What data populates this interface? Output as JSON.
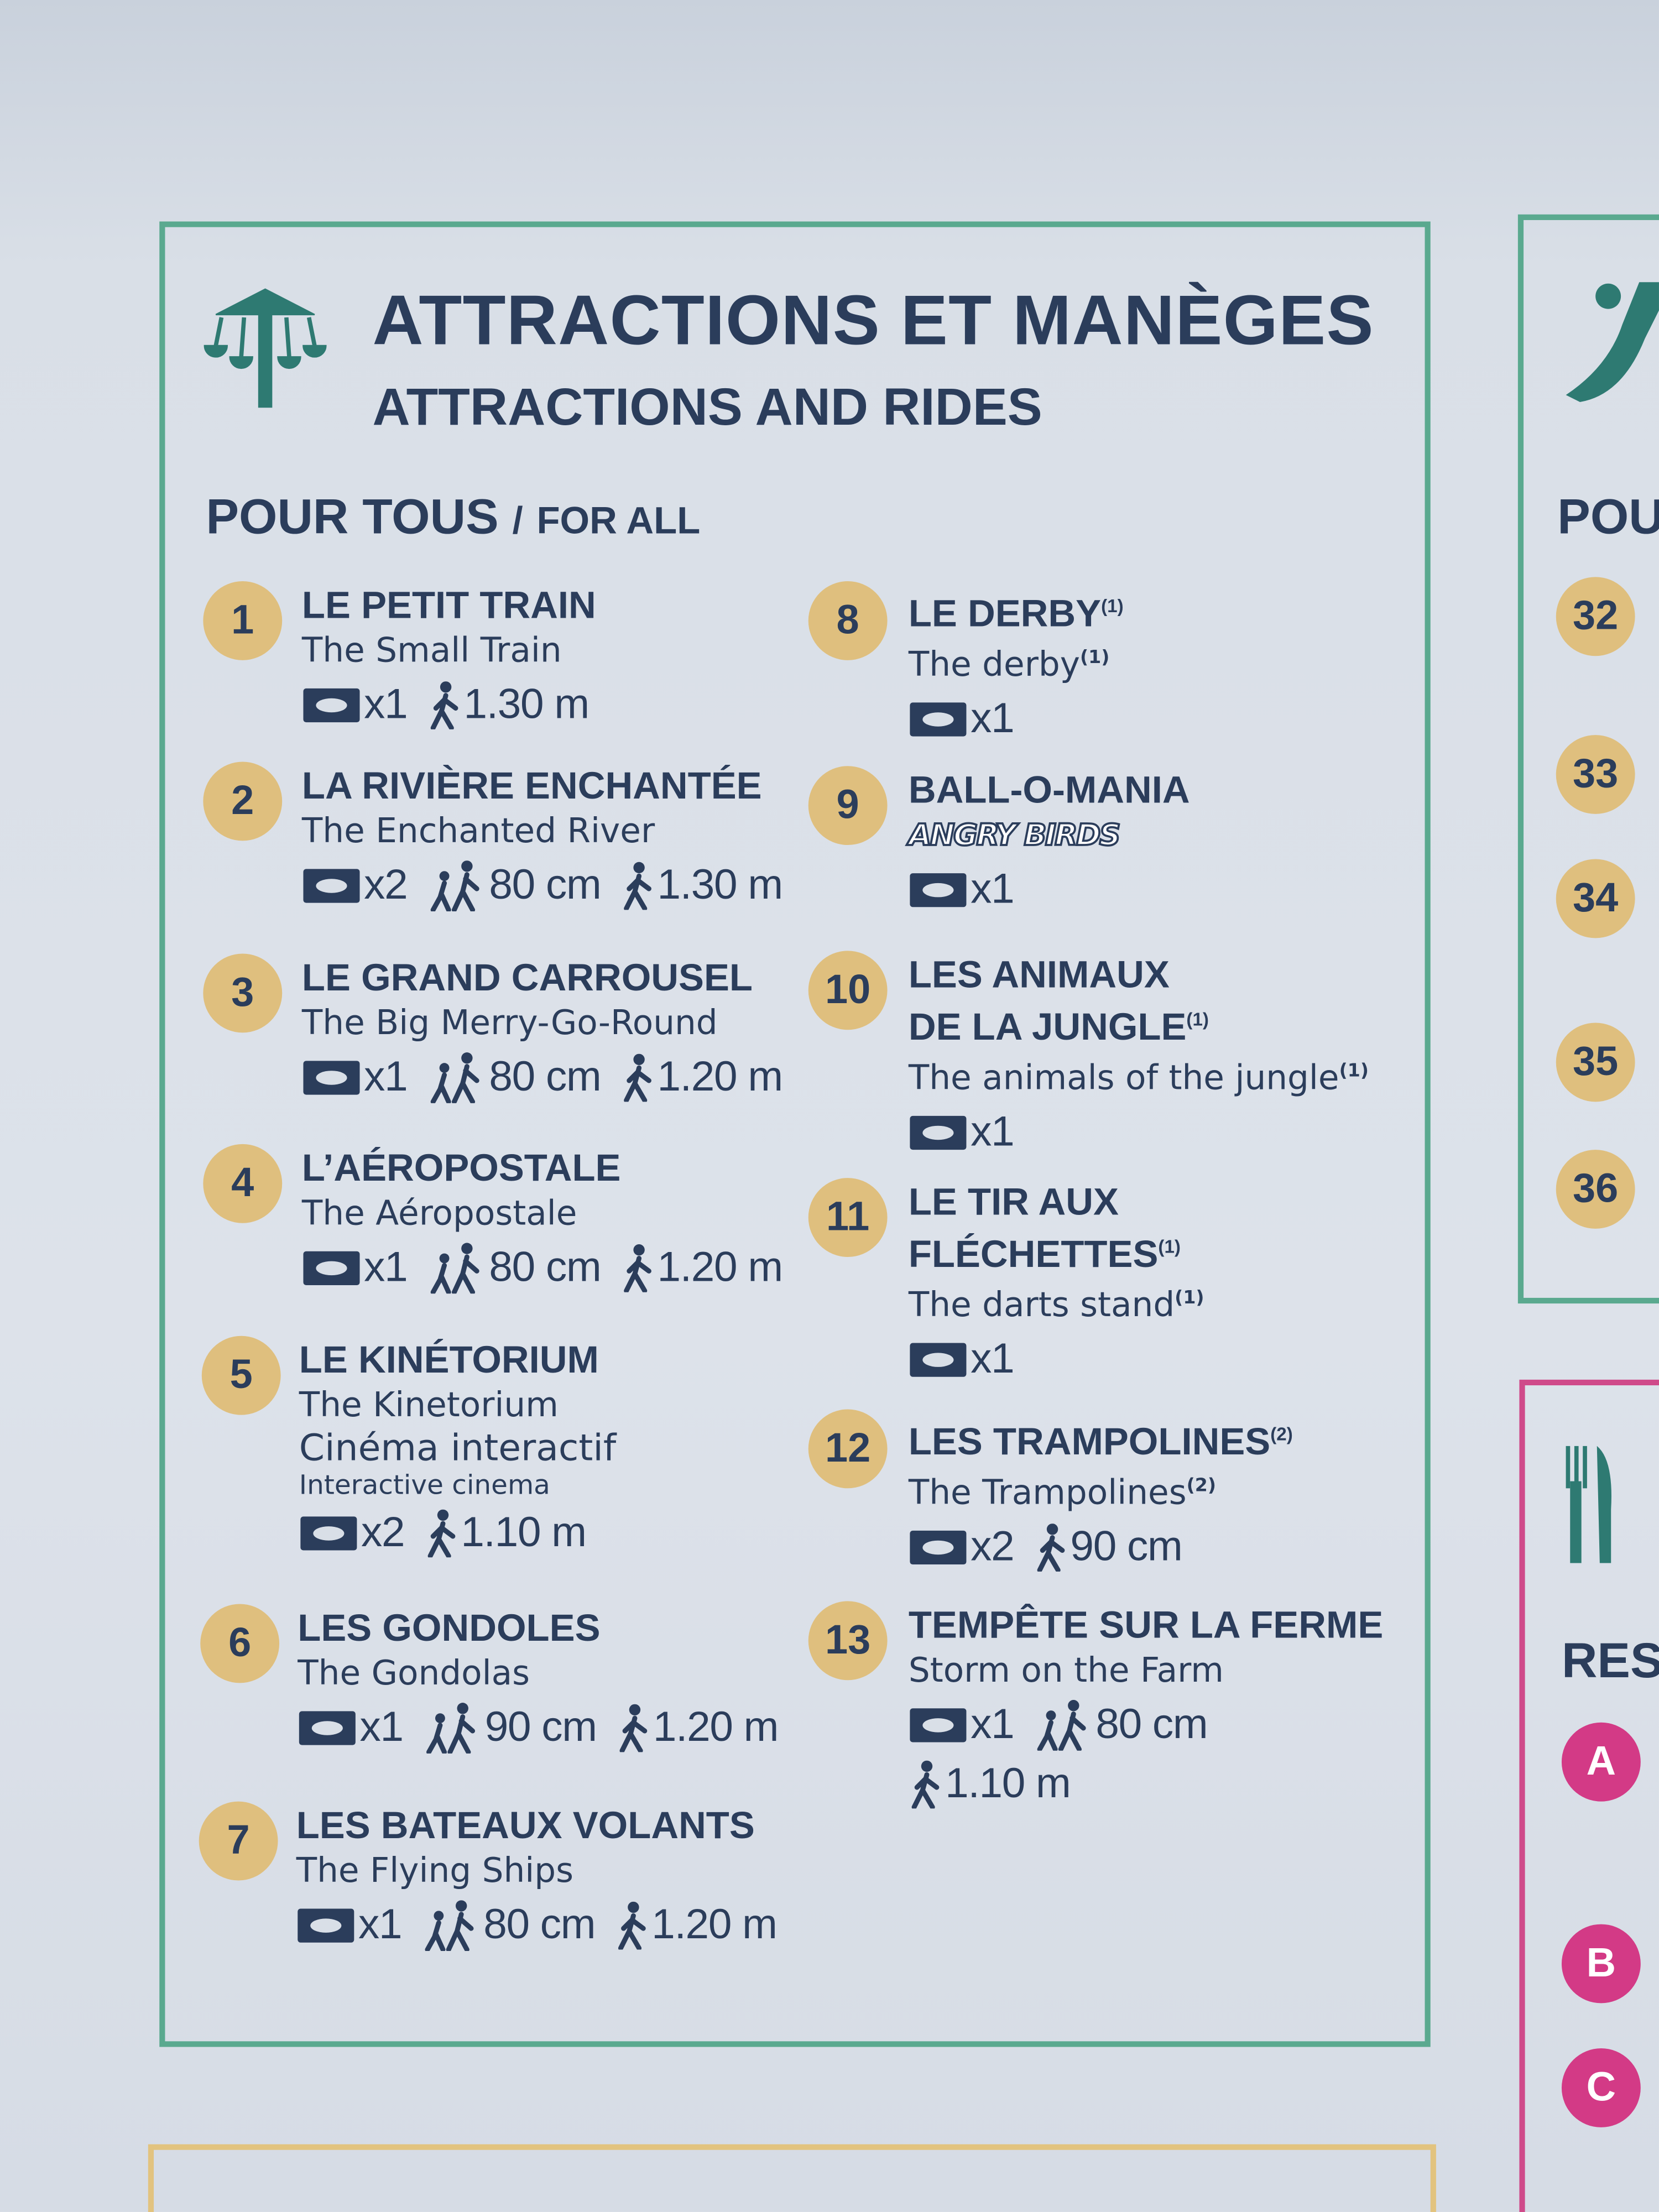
{
  "header": {
    "title": "ATTRACTIONS ET MANÈGES",
    "subtitle": "ATTRACTIONS AND RIDES"
  },
  "section": {
    "title": "POUR TOUS",
    "separator": "/",
    "subtitle": "FOR ALL"
  },
  "items": [
    {
      "number": "1",
      "title": [
        "LE PETIT TRAIN"
      ],
      "translation": "The Small Train",
      "specs": [
        [
          {
            "kind": "tickets",
            "text": "x1"
          },
          {
            "kind": "alone",
            "text": "1.30 m"
          }
        ]
      ]
    },
    {
      "number": "2",
      "title": [
        "LA RIVIÈRE ENCHANTÉE"
      ],
      "translation": "The Enchanted River",
      "specs": [
        [
          {
            "kind": "tickets",
            "text": "x2"
          },
          {
            "kind": "accompanied",
            "text": "80 cm"
          },
          {
            "kind": "alone",
            "text": "1.30 m"
          }
        ]
      ]
    },
    {
      "number": "3",
      "title": [
        "LE GRAND CARROUSEL"
      ],
      "translation": "The Big Merry-Go-Round",
      "specs": [
        [
          {
            "kind": "tickets",
            "text": "x1"
          },
          {
            "kind": "accompanied",
            "text": "80 cm"
          },
          {
            "kind": "alone",
            "text": "1.20 m"
          }
        ]
      ]
    },
    {
      "number": "4",
      "title": [
        "L’AÉROPOSTALE"
      ],
      "translation": "The Aéropostale",
      "specs": [
        [
          {
            "kind": "tickets",
            "text": "x1"
          },
          {
            "kind": "accompanied",
            "text": "80 cm"
          },
          {
            "kind": "alone",
            "text": "1.20 m"
          }
        ]
      ]
    },
    {
      "number": "5",
      "title": [
        "LE KINÉTORIUM"
      ],
      "translation": "The Kinetorium",
      "extra": "Cinéma interactif",
      "extra_translation": "Interactive cinema",
      "specs": [
        [
          {
            "kind": "tickets",
            "text": "x2"
          },
          {
            "kind": "alone",
            "text": "1.10 m"
          }
        ]
      ]
    },
    {
      "number": "6",
      "title": [
        "LES GONDOLES"
      ],
      "translation": "The Gondolas",
      "specs": [
        [
          {
            "kind": "tickets",
            "text": "x1"
          },
          {
            "kind": "accompanied",
            "text": "90 cm"
          },
          {
            "kind": "alone",
            "text": "1.20 m"
          }
        ]
      ]
    },
    {
      "number": "7",
      "title": [
        "LES BATEAUX VOLANTS"
      ],
      "translation": "The Flying Ships",
      "specs": [
        [
          {
            "kind": "tickets",
            "text": "x1"
          },
          {
            "kind": "accompanied",
            "text": "80 cm"
          },
          {
            "kind": "alone",
            "text": "1.20 m"
          }
        ]
      ]
    },
    {
      "number": "8",
      "title": [
        "LE DERBY"
      ],
      "note": "(1)",
      "translation": "The derby",
      "translation_note": "(1)",
      "specs": [
        [
          {
            "kind": "tickets",
            "text": "x1"
          }
        ]
      ]
    },
    {
      "number": "9",
      "title": [
        "BALL-O-MANIA"
      ],
      "logo": "ANGRY BIRDS",
      "specs": [
        [
          {
            "kind": "tickets",
            "text": "x1"
          }
        ]
      ]
    },
    {
      "number": "10",
      "title": [
        "LES ANIMAUX",
        "DE LA JUNGLE"
      ],
      "note": "(1)",
      "translation": "The animals of the jungle",
      "translation_note": "(1)",
      "specs": [
        [
          {
            "kind": "tickets",
            "text": "x1"
          }
        ]
      ]
    },
    {
      "number": "11",
      "title": [
        "LE TIR AUX",
        "FLÉCHETTES"
      ],
      "note": "(1)",
      "translation": "The darts stand",
      "translation_note": "(1)",
      "specs": [
        [
          {
            "kind": "tickets",
            "text": "x1"
          }
        ]
      ]
    },
    {
      "number": "12",
      "title": [
        "LES TRAMPOLINES"
      ],
      "note": "(2)",
      "translation": "The Trampolines",
      "translation_note": "(2)",
      "specs": [
        [
          {
            "kind": "tickets",
            "text": "x2"
          },
          {
            "kind": "alone",
            "text": "90 cm"
          }
        ]
      ]
    },
    {
      "number": "13",
      "title": [
        "TEMPÊTE SUR LA FERME"
      ],
      "translation": "Storm on the Farm",
      "specs": [
        [
          {
            "kind": "tickets",
            "text": "x1"
          },
          {
            "kind": "accompanied",
            "text": "80 cm"
          }
        ],
        [
          {
            "kind": "alone",
            "text": "1.10 m"
          }
        ]
      ]
    }
  ],
  "side_panel": {
    "section_title": "POU",
    "numbers": [
      "32",
      "33",
      "34",
      "35",
      "36"
    ]
  },
  "restaurant_panel": {
    "section_title": "RES",
    "letters": [
      "A",
      "B",
      "C"
    ]
  }
}
